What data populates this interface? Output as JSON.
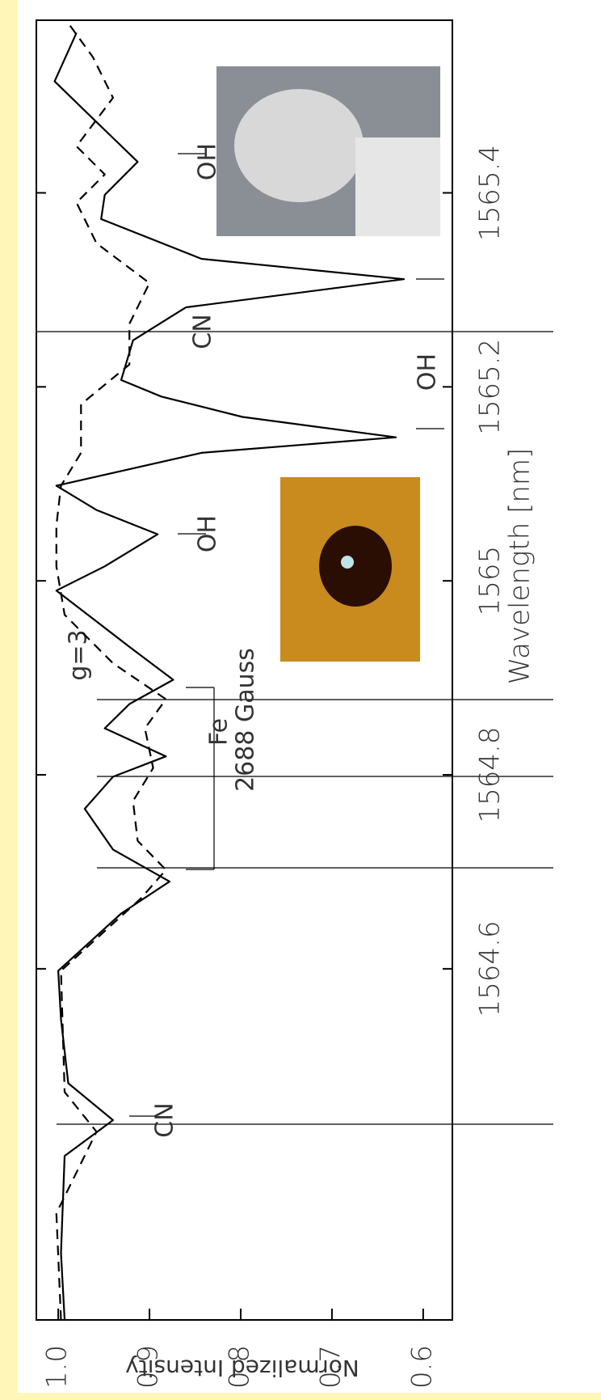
{
  "chart_data": {
    "type": "line",
    "x_label": "Wavelength [nm]",
    "y_label": "Normalized Intensity",
    "xlim": [
      1564.238,
      1565.578
    ],
    "ylim": [
      0.568,
      1.024
    ],
    "xticks": [
      1564.6,
      1564.8,
      1565.0,
      1565.2,
      1565.4
    ],
    "yticks": [
      {
        "value": 1,
        "label": "1.0"
      },
      0.9,
      0.8,
      0.7,
      0.6
    ],
    "annotations": [
      "CN",
      "Fe",
      "2688 Gauss",
      "g=3",
      "OH",
      "OH",
      "CN",
      "OH"
    ],
    "series": [
      {
        "color": "#000000",
        "style": "solid",
        "x": [
          1564.238,
          1564.307,
          1564.407,
          1564.444,
          1564.482,
          1564.548,
          1564.598,
          1564.657,
          1564.69,
          1564.723,
          1564.765,
          1564.798,
          1564.819,
          1564.848,
          1564.873,
          1564.898,
          1564.932,
          1564.99,
          1565.015,
          1565.048,
          1565.073,
          1565.098,
          1565.132,
          1565.148,
          1565.169,
          1565.19,
          1565.207,
          1565.248,
          1565.282,
          1565.311,
          1565.332,
          1565.373,
          1565.398,
          1565.432,
          1565.473,
          1565.515,
          1565.565
        ],
        "values": [
          0.993,
          0.997,
          0.993,
          0.94,
          0.989,
          0.997,
          1.0,
          0.931,
          0.878,
          0.94,
          0.971,
          0.94,
          0.882,
          0.949,
          0.922,
          0.874,
          0.922,
          1.002,
          0.949,
          0.891,
          0.958,
          1.002,
          0.843,
          0.63,
          0.798,
          0.887,
          0.931,
          0.918,
          0.86,
          0.621,
          0.843,
          0.953,
          0.949,
          0.913,
          0.958,
          1.004,
          0.98
        ]
      },
      {
        "color": "#000000",
        "style": "dashed",
        "x": [
          1564.238,
          1564.348,
          1564.432,
          1564.473,
          1564.598,
          1564.673,
          1564.702,
          1564.732,
          1564.773,
          1564.807,
          1564.848,
          1564.878,
          1564.915,
          1564.965,
          1565.015,
          1565.057,
          1565.098,
          1565.132,
          1565.182,
          1565.223,
          1565.265,
          1565.307,
          1565.348,
          1565.39,
          1565.419,
          1565.448,
          1565.498,
          1565.54,
          1565.575
        ],
        "values": [
          0.997,
          1.002,
          0.958,
          0.993,
          0.997,
          0.909,
          0.882,
          0.913,
          0.918,
          0.896,
          0.905,
          0.882,
          0.94,
          0.993,
          1.002,
          1.002,
          0.997,
          0.975,
          0.975,
          0.922,
          0.922,
          0.9,
          0.958,
          0.98,
          0.949,
          0.98,
          0.94,
          0.962,
          0.989
        ]
      }
    ]
  }
}
